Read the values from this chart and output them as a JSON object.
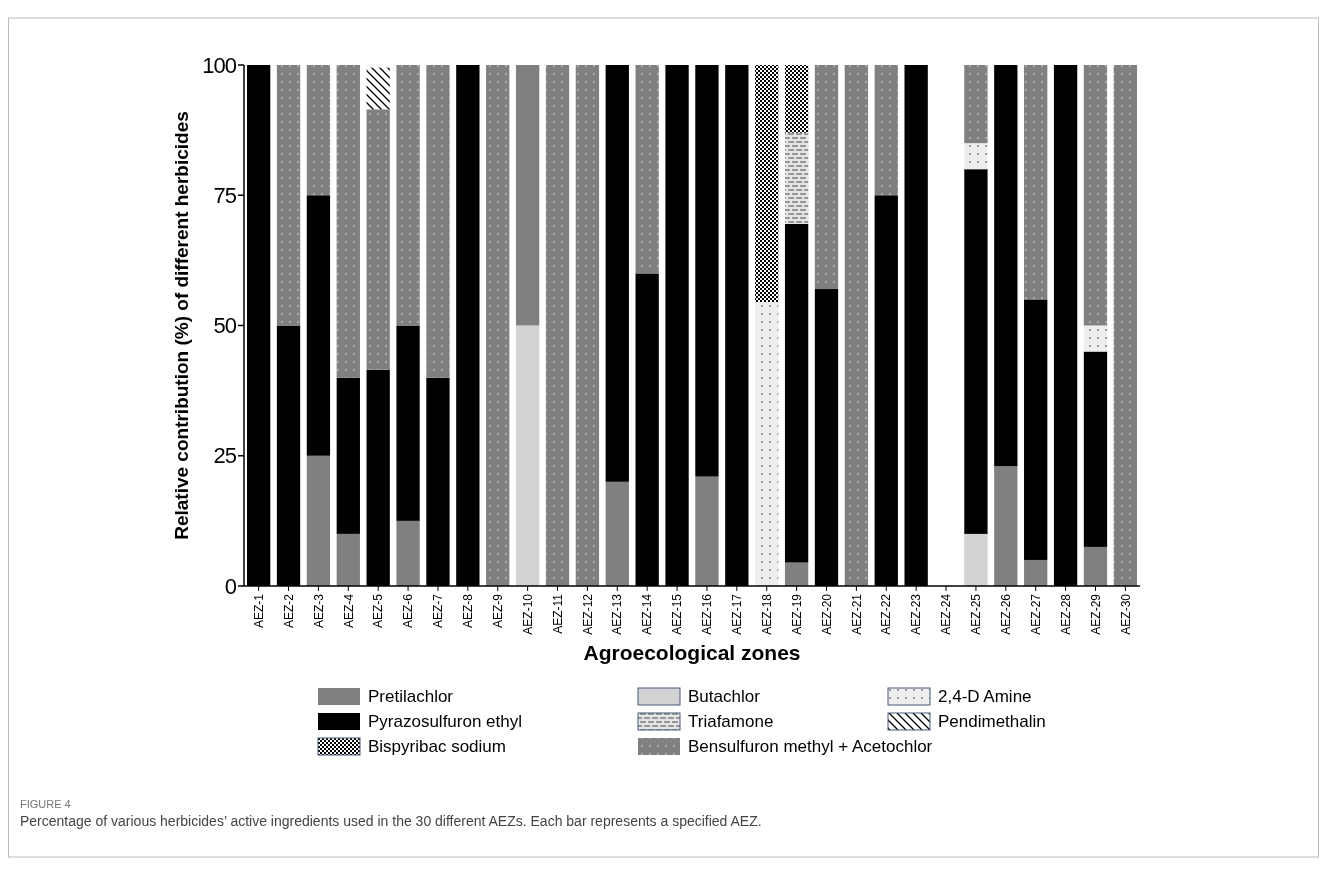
{
  "chart_data": {
    "type": "bar",
    "stacked": true,
    "xlabel": "Agroecological zones",
    "ylabel": "Relative contribution (%) of different herbicides",
    "categories": [
      "AEZ-1",
      "AEZ-2",
      "AEZ-3",
      "AEZ-4",
      "AEZ-5",
      "AEZ-6",
      "AEZ-7",
      "AEZ-8",
      "AEZ-9",
      "AEZ-10",
      "AEZ-11",
      "AEZ-12",
      "AEZ-13",
      "AEZ-14",
      "AEZ-15",
      "AEZ-16",
      "AEZ-17",
      "AEZ-18",
      "AEZ-19",
      "AEZ-20",
      "AEZ-21",
      "AEZ-22",
      "AEZ-23",
      "AEZ-24",
      "AEZ-25",
      "AEZ-26",
      "AEZ-27",
      "AEZ-28",
      "AEZ-29",
      "AEZ-30"
    ],
    "series": [
      {
        "name": "Butachlor",
        "color": "#d3d3d3",
        "values": [
          null,
          null,
          null,
          null,
          null,
          null,
          null,
          null,
          null,
          50,
          null,
          null,
          null,
          null,
          null,
          null,
          null,
          null,
          null,
          null,
          null,
          null,
          null,
          null,
          10,
          null,
          null,
          null,
          null,
          null
        ]
      },
      {
        "name": "Pretilachlor",
        "color": "#808080",
        "values": [
          null,
          null,
          25,
          10,
          null,
          12.5,
          null,
          null,
          null,
          50,
          null,
          null,
          20,
          null,
          null,
          21,
          null,
          null,
          4.5,
          null,
          null,
          null,
          null,
          null,
          null,
          23,
          5,
          null,
          7.5,
          null
        ]
      },
      {
        "name": "Pyrazosulfuron ethyl",
        "color": "#000000",
        "values": [
          100,
          50,
          50,
          30,
          41.5,
          37.5,
          40,
          100,
          null,
          null,
          null,
          null,
          80,
          60,
          100,
          79,
          100,
          null,
          65,
          57,
          null,
          75,
          100,
          null,
          70,
          77,
          50,
          100,
          37.5,
          null
        ]
      },
      {
        "name": "2,4-D Amine",
        "color": "#eeeeee",
        "values": [
          null,
          null,
          null,
          null,
          null,
          null,
          null,
          null,
          null,
          null,
          null,
          null,
          null,
          null,
          null,
          null,
          null,
          54.5,
          null,
          null,
          null,
          null,
          null,
          null,
          5,
          null,
          null,
          null,
          5,
          null
        ]
      },
      {
        "name": "Triafamone",
        "color": "#e6e6e6",
        "values": [
          null,
          null,
          null,
          null,
          null,
          null,
          null,
          null,
          null,
          null,
          null,
          null,
          null,
          null,
          null,
          null,
          null,
          null,
          17.5,
          null,
          null,
          null,
          null,
          null,
          null,
          null,
          null,
          null,
          null,
          null
        ]
      },
      {
        "name": "Bispyribac sodium",
        "color": "#ffffff",
        "values": [
          null,
          null,
          null,
          null,
          null,
          null,
          null,
          null,
          null,
          null,
          null,
          null,
          null,
          null,
          null,
          null,
          null,
          45.5,
          13,
          null,
          null,
          null,
          null,
          null,
          null,
          null,
          null,
          null,
          null,
          null
        ]
      },
      {
        "name": "Bensulfuron methyl + Acetochlor",
        "color": "#808080",
        "values": [
          null,
          50,
          25,
          60,
          50,
          50,
          60,
          null,
          100,
          null,
          100,
          100,
          null,
          40,
          null,
          null,
          null,
          null,
          null,
          43,
          100,
          25,
          null,
          null,
          15,
          null,
          45,
          null,
          50,
          100
        ]
      },
      {
        "name": "Pendimethalin",
        "color": "#ffffff",
        "values": [
          null,
          null,
          null,
          null,
          8,
          null,
          null,
          null,
          null,
          null,
          null,
          null,
          null,
          null,
          null,
          null,
          null,
          null,
          null,
          null,
          null,
          null,
          null,
          null,
          null,
          null,
          null,
          null,
          null,
          null
        ]
      }
    ],
    "ylim": [
      0,
      100
    ],
    "yticks": [
      0,
      25,
      50,
      75,
      100
    ],
    "grid": false,
    "legend": "bottom",
    "annotations": [
      "FIGURE 4",
      "Percentage of various herbicides’ active ingredients used in the 30 different AEZs. Each bar represents a specified AEZ."
    ]
  }
}
